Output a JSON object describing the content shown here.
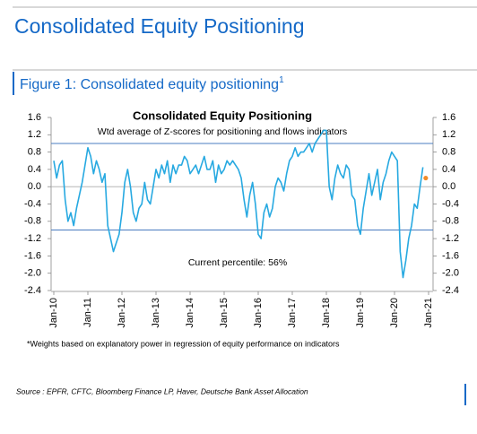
{
  "header": {
    "title": "Consolidated Equity Positioning",
    "figure_title": "Figure 1: Consolidated equity positioning",
    "figure_title_sup": "1"
  },
  "chart_data": {
    "type": "line",
    "title": "Consolidated Equity Positioning",
    "subtitle": "Wtd average of Z-scores for positioning and flows indicators",
    "annotation": "Current percentile: 56%",
    "categories": [
      "Jan-10",
      null,
      null,
      null,
      null,
      null,
      null,
      null,
      null,
      null,
      null,
      null,
      "Jan-11",
      null,
      null,
      null,
      null,
      null,
      null,
      null,
      null,
      null,
      null,
      null,
      "Jan-12",
      null,
      null,
      null,
      null,
      null,
      null,
      null,
      null,
      null,
      null,
      null,
      "Jan-13",
      null,
      null,
      null,
      null,
      null,
      null,
      null,
      null,
      null,
      null,
      null,
      "Jan-14",
      null,
      null,
      null,
      null,
      null,
      null,
      null,
      null,
      null,
      null,
      null,
      "Jan-15",
      null,
      null,
      null,
      null,
      null,
      null,
      null,
      null,
      null,
      null,
      null,
      "Jan-16",
      null,
      null,
      null,
      null,
      null,
      null,
      null,
      null,
      null,
      null,
      null,
      "Jan-17",
      null,
      null,
      null,
      null,
      null,
      null,
      null,
      null,
      null,
      null,
      null,
      "Jan-18",
      null,
      null,
      null,
      null,
      null,
      null,
      null,
      null,
      null,
      null,
      null,
      "Jan-19",
      null,
      null,
      null,
      null,
      null,
      null,
      null,
      null,
      null,
      null,
      null,
      "Jan-20",
      null,
      null,
      null,
      null,
      null,
      null,
      null,
      null,
      null,
      null,
      null,
      "Jan-21"
    ],
    "series": [
      {
        "color": "#27a9e1",
        "values": [
          0.6,
          0.2,
          0.5,
          0.6,
          -0.3,
          -0.8,
          -0.6,
          -0.9,
          -0.5,
          -0.2,
          0.1,
          0.5,
          0.9,
          0.7,
          0.3,
          0.6,
          0.4,
          0.1,
          0.3,
          -0.9,
          -1.2,
          -1.5,
          -1.3,
          -1.1,
          -0.6,
          0.1,
          0.4,
          0.0,
          -0.6,
          -0.8,
          -0.5,
          -0.4,
          0.1,
          -0.3,
          -0.4,
          0.0,
          0.4,
          0.2,
          0.5,
          0.3,
          0.6,
          0.1,
          0.5,
          0.3,
          0.5,
          0.5,
          0.7,
          0.6,
          0.3,
          0.4,
          0.5,
          0.3,
          0.5,
          0.7,
          0.4,
          0.4,
          0.6,
          0.1,
          0.5,
          0.3,
          0.4,
          0.6,
          0.5,
          0.6,
          0.5,
          0.4,
          0.2,
          -0.3,
          -0.7,
          -0.2,
          0.1,
          -0.4,
          -1.1,
          -1.2,
          -0.6,
          -0.4,
          -0.7,
          -0.5,
          0.0,
          0.2,
          0.1,
          -0.1,
          0.3,
          0.6,
          0.7,
          0.9,
          0.7,
          0.8,
          0.8,
          0.9,
          1.0,
          0.8,
          1.0,
          1.1,
          1.2,
          1.3,
          1.3,
          0.0,
          -0.3,
          0.2,
          0.5,
          0.3,
          0.2,
          0.5,
          0.4,
          -0.2,
          -0.3,
          -0.9,
          -1.1,
          -0.5,
          -0.1,
          0.3,
          -0.2,
          0.1,
          0.4,
          -0.3,
          0.1,
          0.3,
          0.6,
          0.8,
          0.7,
          0.6,
          -1.5,
          -2.1,
          -1.7,
          -1.2,
          -0.9,
          -0.4,
          -0.5,
          0.0,
          0.45,
          null,
          null
        ]
      },
      {
        "color": "#f28c28",
        "values": [
          null,
          null,
          null,
          null,
          null,
          null,
          null,
          null,
          null,
          null,
          null,
          null,
          null,
          null,
          null,
          null,
          null,
          null,
          null,
          null,
          null,
          null,
          null,
          null,
          null,
          null,
          null,
          null,
          null,
          null,
          null,
          null,
          null,
          null,
          null,
          null,
          null,
          null,
          null,
          null,
          null,
          null,
          null,
          null,
          null,
          null,
          null,
          null,
          null,
          null,
          null,
          null,
          null,
          null,
          null,
          null,
          null,
          null,
          null,
          null,
          null,
          null,
          null,
          null,
          null,
          null,
          null,
          null,
          null,
          null,
          null,
          null,
          null,
          null,
          null,
          null,
          null,
          null,
          null,
          null,
          null,
          null,
          null,
          null,
          null,
          null,
          null,
          null,
          null,
          null,
          null,
          null,
          null,
          null,
          null,
          null,
          null,
          null,
          null,
          null,
          null,
          null,
          null,
          null,
          null,
          null,
          null,
          null,
          null,
          null,
          null,
          null,
          null,
          null,
          null,
          null,
          null,
          null,
          null,
          null,
          null,
          null,
          null,
          null,
          null,
          null,
          null,
          null,
          null,
          null,
          null,
          0.2,
          null
        ]
      }
    ],
    "reference_lines": [
      1.0,
      -1.0
    ],
    "reference_color": "#4a7cc0",
    "ylim": [
      -2.4,
      1.6
    ],
    "yticks": [
      1.6,
      1.2,
      0.8,
      0.4,
      {
        "value": 0,
        "label": "0.0"
      },
      -0.4,
      -0.8,
      -1.2,
      -1.6,
      {
        "value": -2,
        "label": "-2.0"
      },
      -2.4
    ],
    "y2lim": [
      -2.4,
      1.6
    ],
    "y2ticks": [
      1.6,
      1.2,
      0.8,
      0.4,
      {
        "value": 0,
        "label": "0.0"
      },
      -0.4,
      -0.8,
      -1.2,
      -1.6,
      {
        "value": -2,
        "label": "-2.0"
      },
      -2.4
    ]
  },
  "footnote": "*Weights based on explanatory power in regression of equity performance on indicators",
  "source": "Source : EPFR, CFTC, Bloomberg Finance LP, Haver, Deutsche Bank Asset Allocation"
}
